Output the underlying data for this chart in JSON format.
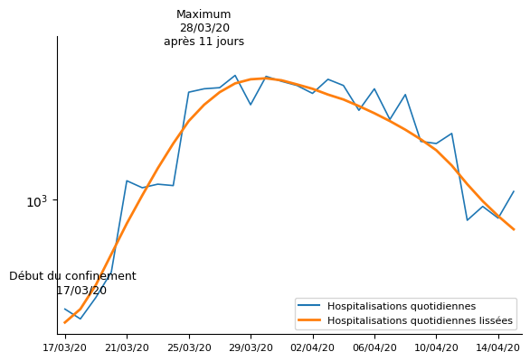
{
  "dates": [
    "17/03/20",
    "18/03/20",
    "19/03/20",
    "20/03/20",
    "21/03/20",
    "22/03/20",
    "23/03/20",
    "24/03/20",
    "25/03/20",
    "26/03/20",
    "27/03/20",
    "28/03/20",
    "29/03/20",
    "30/03/20",
    "31/03/20",
    "01/04/20",
    "02/04/20",
    "03/04/20",
    "04/04/20",
    "05/04/20",
    "06/04/20",
    "07/04/20",
    "08/04/20",
    "09/04/20",
    "10/04/20",
    "11/04/20",
    "12/04/20",
    "13/04/20",
    "14/04/20",
    "15/04/20"
  ],
  "raw_values": [
    270,
    240,
    310,
    420,
    1250,
    1150,
    1200,
    1180,
    3600,
    3750,
    3800,
    4400,
    3100,
    4350,
    4100,
    3900,
    3550,
    4200,
    3900,
    2900,
    3750,
    2600,
    3500,
    2000,
    1950,
    2200,
    780,
    920,
    800,
    1100
  ],
  "smoothed_values": [
    230,
    270,
    360,
    520,
    750,
    1050,
    1450,
    1950,
    2550,
    3100,
    3600,
    4000,
    4200,
    4250,
    4150,
    3950,
    3750,
    3500,
    3300,
    3050,
    2800,
    2550,
    2300,
    2050,
    1800,
    1500,
    1200,
    980,
    820,
    700
  ],
  "xtick_labels": [
    "17/03/20",
    "21/03/20",
    "25/03/20",
    "29/03/20",
    "02/04/20",
    "06/04/20",
    "10/04/20",
    "14/04/20"
  ],
  "xtick_positions": [
    0,
    4,
    8,
    12,
    16,
    20,
    24,
    28
  ],
  "annotation_max_text": "Maximum\n28/03/20\naprès 11 jours",
  "annotation_max_xi": 11,
  "annotation_confinement_text": "Début du confinement\n     17/03/20",
  "annotation_confinement_xi": 0,
  "line_color_raw": "#1f77b4",
  "line_color_smooth": "#ff7f0e",
  "legend_labels": [
    "Hospitalisations quotidiennes",
    "Hospitalisations quotidiennes lissées"
  ],
  "ylim_low": 200,
  "ylim_high": 7000,
  "background_color": "#ffffff"
}
